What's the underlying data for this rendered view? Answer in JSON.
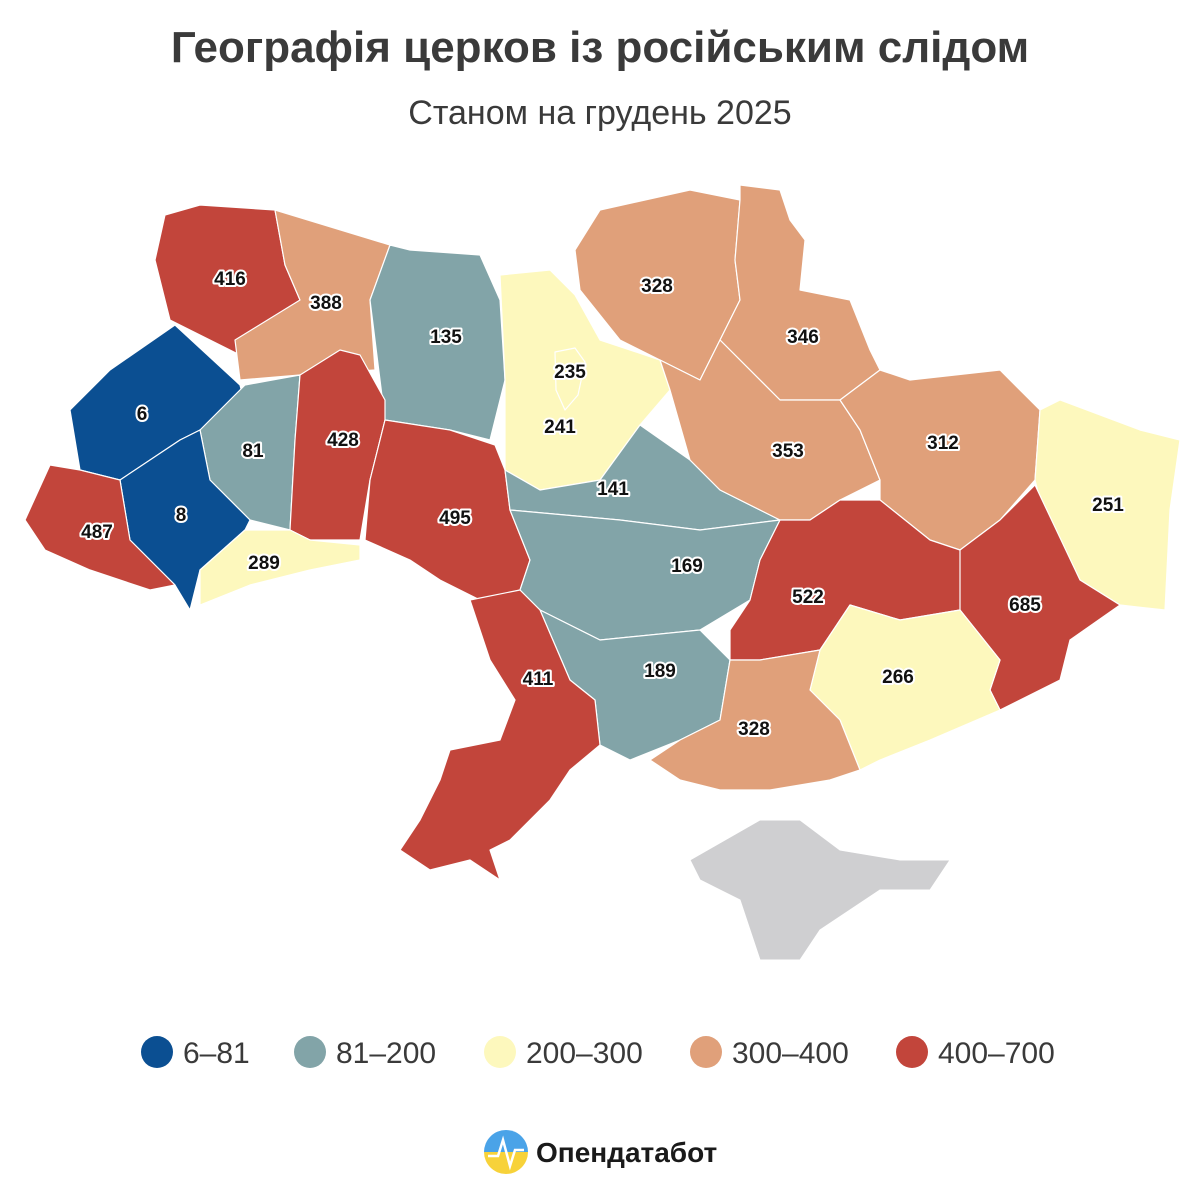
{
  "header": {
    "title": "Географія церков із російським слідом",
    "subtitle": "Станом на грудень 2025"
  },
  "map": {
    "regions": [
      {
        "value": 416,
        "color": "#c2453b"
      },
      {
        "value": 388,
        "color": "#e0a07a"
      },
      {
        "value": 135,
        "color": "#82a4a8"
      },
      {
        "value": 241,
        "color": "#fdf8bd"
      },
      {
        "value": 6,
        "color": "#0b4f92"
      },
      {
        "value": 81,
        "color": "#82a4a8"
      },
      {
        "value": 428,
        "color": "#c2453b"
      },
      {
        "value": 495,
        "color": "#c2453b"
      },
      {
        "value": 8,
        "color": "#0b4f92"
      },
      {
        "value": 487,
        "color": "#c2453b"
      },
      {
        "value": 289,
        "color": "#fdf8bd"
      },
      {
        "value": 141,
        "color": "#82a4a8"
      },
      {
        "value": 169,
        "color": "#82a4a8"
      },
      {
        "value": 189,
        "color": "#82a4a8"
      },
      {
        "value": 411,
        "color": "#c2453b"
      },
      {
        "value": 328,
        "color": "#e0a07a"
      },
      {
        "value": 346,
        "color": "#e0a07a"
      },
      {
        "value": 353,
        "color": "#e0a07a"
      },
      {
        "value": 312,
        "color": "#e0a07a"
      },
      {
        "value": 251,
        "color": "#fdf8bd"
      },
      {
        "value": 685,
        "color": "#c2453b"
      },
      {
        "value": 522,
        "color": "#c2453b"
      },
      {
        "value": 266,
        "color": "#fdf8bd"
      },
      {
        "value": 328,
        "color": "#e0a07a"
      },
      {
        "value": 235,
        "color": "#fdf8bd"
      }
    ]
  },
  "legend": [
    {
      "label": "6–81",
      "color": "#0b4f92"
    },
    {
      "label": "81–200",
      "color": "#82a4a8"
    },
    {
      "label": "200–300",
      "color": "#fdf8bd"
    },
    {
      "label": "300–400",
      "color": "#e0a07a"
    },
    {
      "label": "400–700",
      "color": "#c2453b"
    }
  ],
  "footer": {
    "brand": "Опендатабот"
  }
}
